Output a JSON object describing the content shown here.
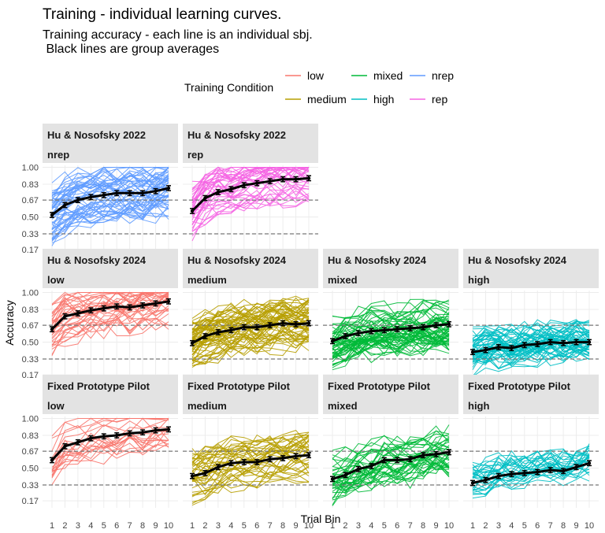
{
  "title": "Training - individual learning curves.",
  "subtitle_line1": "Training accuracy - each line is an individual sbj.",
  "subtitle_line2": " Black lines are group averages",
  "legend": {
    "title": "Training Condition",
    "items": [
      {
        "label": "low",
        "color": "#F8766D"
      },
      {
        "label": "medium",
        "color": "#B79F00"
      },
      {
        "label": "mixed",
        "color": "#00BA38"
      },
      {
        "label": "high",
        "color": "#00BFC4"
      },
      {
        "label": "nrep",
        "color": "#619CFF"
      },
      {
        "label": "rep",
        "color": "#F564E3"
      }
    ]
  },
  "chart_data": {
    "type": "line",
    "xlabel": "Trial Bin",
    "ylabel": "Accuracy",
    "x_ticks": [
      "1",
      "2",
      "3",
      "4",
      "5",
      "6",
      "7",
      "8",
      "9",
      "10"
    ],
    "y_ticks": [
      "0.17",
      "0.33",
      "0.50",
      "0.67",
      "0.83",
      "1.00"
    ],
    "y_values": [
      0.17,
      0.33,
      0.5,
      0.67,
      0.83,
      1.0
    ],
    "ylim": [
      0.1,
      1.02
    ],
    "reference_lines": [
      0.33,
      0.67
    ],
    "panels": [
      {
        "row": 0,
        "col": 0,
        "strip1": "Hu & Nosofsky 2022",
        "strip2": "nrep",
        "color": "#619CFF",
        "n": 55,
        "spread": 0.24,
        "mean": [
          0.52,
          0.62,
          0.67,
          0.7,
          0.72,
          0.74,
          0.74,
          0.74,
          0.76,
          0.79
        ]
      },
      {
        "row": 0,
        "col": 1,
        "strip1": "Hu & Nosofsky 2022",
        "strip2": "rep",
        "color": "#F564E3",
        "n": 40,
        "spread": 0.22,
        "mean": [
          0.56,
          0.69,
          0.75,
          0.78,
          0.82,
          0.84,
          0.86,
          0.88,
          0.88,
          0.89
        ]
      },
      {
        "row": 1,
        "col": 0,
        "strip1": "Hu & Nosofsky 2024",
        "strip2": "low",
        "color": "#F8766D",
        "n": 35,
        "spread": 0.22,
        "mean": [
          0.63,
          0.76,
          0.79,
          0.82,
          0.84,
          0.86,
          0.85,
          0.87,
          0.89,
          0.91
        ]
      },
      {
        "row": 1,
        "col": 1,
        "strip1": "Hu & Nosofsky 2024",
        "strip2": "medium",
        "color": "#B79F00",
        "n": 60,
        "spread": 0.22,
        "mean": [
          0.49,
          0.56,
          0.6,
          0.62,
          0.65,
          0.65,
          0.67,
          0.69,
          0.68,
          0.69
        ]
      },
      {
        "row": 1,
        "col": 2,
        "strip1": "Hu & Nosofsky 2024",
        "strip2": "mixed",
        "color": "#00BA38",
        "n": 60,
        "spread": 0.22,
        "mean": [
          0.51,
          0.56,
          0.59,
          0.61,
          0.62,
          0.63,
          0.64,
          0.65,
          0.67,
          0.68
        ]
      },
      {
        "row": 1,
        "col": 3,
        "strip1": "Hu & Nosofsky 2024",
        "strip2": "high",
        "color": "#00BFC4",
        "n": 55,
        "spread": 0.15,
        "mean": [
          0.4,
          0.42,
          0.45,
          0.44,
          0.47,
          0.48,
          0.5,
          0.49,
          0.5,
          0.5
        ]
      },
      {
        "row": 2,
        "col": 0,
        "strip1": "Fixed Prototype Pilot",
        "strip2": "low",
        "color": "#F8766D",
        "n": 20,
        "spread": 0.2,
        "mean": [
          0.58,
          0.72,
          0.76,
          0.8,
          0.82,
          0.83,
          0.85,
          0.86,
          0.88,
          0.89
        ]
      },
      {
        "row": 2,
        "col": 1,
        "strip1": "Fixed Prototype Pilot",
        "strip2": "medium",
        "color": "#B79F00",
        "n": 40,
        "spread": 0.2,
        "mean": [
          0.42,
          0.45,
          0.51,
          0.55,
          0.56,
          0.56,
          0.59,
          0.6,
          0.62,
          0.63
        ]
      },
      {
        "row": 2,
        "col": 2,
        "strip1": "Fixed Prototype Pilot",
        "strip2": "mixed",
        "color": "#00BA38",
        "n": 40,
        "spread": 0.2,
        "mean": [
          0.39,
          0.43,
          0.49,
          0.52,
          0.58,
          0.58,
          0.59,
          0.63,
          0.64,
          0.66
        ]
      },
      {
        "row": 2,
        "col": 3,
        "strip1": "Fixed Prototype Pilot",
        "strip2": "high",
        "color": "#00BFC4",
        "n": 30,
        "spread": 0.14,
        "mean": [
          0.35,
          0.38,
          0.42,
          0.44,
          0.45,
          0.46,
          0.48,
          0.47,
          0.51,
          0.55
        ]
      }
    ]
  }
}
